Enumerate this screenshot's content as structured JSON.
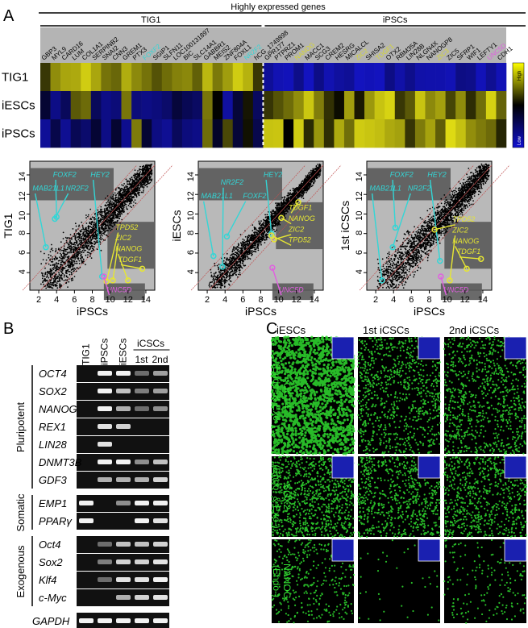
{
  "panel_a": {
    "letter": "A",
    "title": "Highly expressed genes",
    "groups": [
      "TIG1",
      "iPSCs"
    ],
    "genes_tig1": [
      "GBP3",
      "MYL9",
      "CARD16",
      "LUM",
      "COL1A1",
      "SERPINB2",
      "SNAI2",
      "CNN3",
      "GREM1",
      "PTX3",
      {
        "label": "FOXF2",
        "color": "#33d6d6"
      },
      "SGIP1",
      "SLFN11",
      "LOC100131897",
      "BIC",
      "SLC14A1",
      "GABBR1",
      "MEIS2",
      "ZNF804A",
      "FOXL1",
      {
        "label": "NR2F2",
        "color": "#33d6d6"
      },
      "hCG_1749898"
    ],
    "genes_ipsc": [
      "GPR177",
      "PTPRZ1",
      "PROM1",
      {
        "label": "NANOG",
        "color": "#d6d633"
      },
      "MACC1",
      "SCG3",
      "CREM2",
      "HESRG",
      "MICALCL",
      {
        "label": "ZIC2",
        "color": "#d6d633"
      },
      "SHISA2",
      {
        "label": "TDGF1",
        "color": "#d6d633"
      },
      "OTX2",
      "RBM35A",
      "LIN28B",
      "NLGN4X",
      "NANOGP8",
      {
        "label": "ZIC3",
        "color": "#d6d633"
      },
      "ZIC5",
      "SFRP1",
      "WIF1",
      "LEFTY1",
      {
        "label": "UNC5D",
        "color": "#e060e0"
      },
      "CDH1"
    ],
    "rows": [
      "TIG1",
      "iESCs",
      "iPSCs"
    ],
    "high": "High",
    "low": "Low"
  },
  "scatter": [
    {
      "ylabel": "TIG1",
      "xlabel": "iPSCs",
      "xticks": [
        2,
        4,
        6,
        8,
        10,
        12,
        14
      ],
      "yticks": [
        4,
        6,
        8,
        10,
        12,
        14
      ],
      "genes": [
        {
          "label": "MAB21L1",
          "color": "#33d6d6"
        },
        {
          "label": "FOXF2",
          "color": "#33d6d6"
        },
        {
          "label": "NR2F2",
          "color": "#33d6d6"
        },
        {
          "label": "HEY2",
          "color": "#33d6d6"
        },
        {
          "label": "TPD52",
          "color": "#e6e633"
        },
        {
          "label": "ZIC2",
          "color": "#e6e633"
        },
        {
          "label": "NANOG",
          "color": "#e6e633"
        },
        {
          "label": "TDGF1",
          "color": "#e6e633"
        },
        {
          "label": "UNC5D",
          "color": "#e060e0"
        }
      ]
    },
    {
      "ylabel": "iESCs",
      "xlabel": "iPSCs",
      "xticks": [
        2,
        4,
        6,
        8,
        10,
        12,
        14
      ],
      "yticks": [
        4,
        6,
        8,
        10,
        12,
        14
      ],
      "genes": [
        {
          "label": "MAB21L1",
          "color": "#33d6d6"
        },
        {
          "label": "NR2F2",
          "color": "#33d6d6"
        },
        {
          "label": "FOXF2",
          "color": "#33d6d6"
        },
        {
          "label": "HEY2",
          "color": "#33d6d6"
        },
        {
          "label": "TDGF1",
          "color": "#e6e633"
        },
        {
          "label": "NANOG",
          "color": "#e6e633"
        },
        {
          "label": "ZIC2",
          "color": "#e6e633"
        },
        {
          "label": "TPD52",
          "color": "#e6e633"
        },
        {
          "label": "UNC5D",
          "color": "#e060e0"
        }
      ]
    },
    {
      "ylabel": "1st iCSCs",
      "xlabel": "iPSCs",
      "xticks": [
        2,
        4,
        6,
        8,
        10,
        12,
        14
      ],
      "yticks": [
        4,
        6,
        8,
        10,
        12,
        14
      ],
      "genes": [
        {
          "label": "MAB21L1",
          "color": "#33d6d6"
        },
        {
          "label": "FOXF2",
          "color": "#33d6d6"
        },
        {
          "label": "NR2F2",
          "color": "#33d6d6"
        },
        {
          "label": "HEY2",
          "color": "#33d6d6"
        },
        {
          "label": "TPD52",
          "color": "#e6e633"
        },
        {
          "label": "ZIC2",
          "color": "#e6e633"
        },
        {
          "label": "NANOG",
          "color": "#e6e633"
        },
        {
          "label": "TDGF1",
          "color": "#e6e633"
        },
        {
          "label": "UNC5D",
          "color": "#e060e0"
        }
      ]
    }
  ],
  "panel_b": {
    "letter": "B",
    "lanes": [
      "TIG1",
      "iPSCs",
      "iESCs"
    ],
    "group_lane": "iCSCs",
    "sublanes": [
      "1st",
      "2nd"
    ],
    "groups": [
      {
        "label": "Pluripotent",
        "genes": [
          "OCT4",
          "SOX2",
          "NANOG",
          "REX1",
          "LIN28",
          "DNMT3B",
          "GDF3"
        ]
      },
      {
        "label": "Somatic",
        "genes": [
          "EMP1",
          "PPARγ"
        ]
      },
      {
        "label": "Exogenous",
        "genes": [
          "Oct4",
          "Sox2",
          "Klf4",
          "c-Myc"
        ]
      }
    ],
    "control": "GAPDH"
  },
  "panel_c": {
    "letter": "C",
    "columns": [
      "iESCs",
      "1st iCSCs",
      "2nd iCSCs"
    ],
    "rows": [
      {
        "name": "OCT4",
        "detail": "(Endo- & Exo-)"
      },
      {
        "name": "SOX2",
        "detail": "(Endo- & Exo-)"
      },
      {
        "name": "NANOG",
        "detail": "(Endo-)"
      }
    ]
  }
}
